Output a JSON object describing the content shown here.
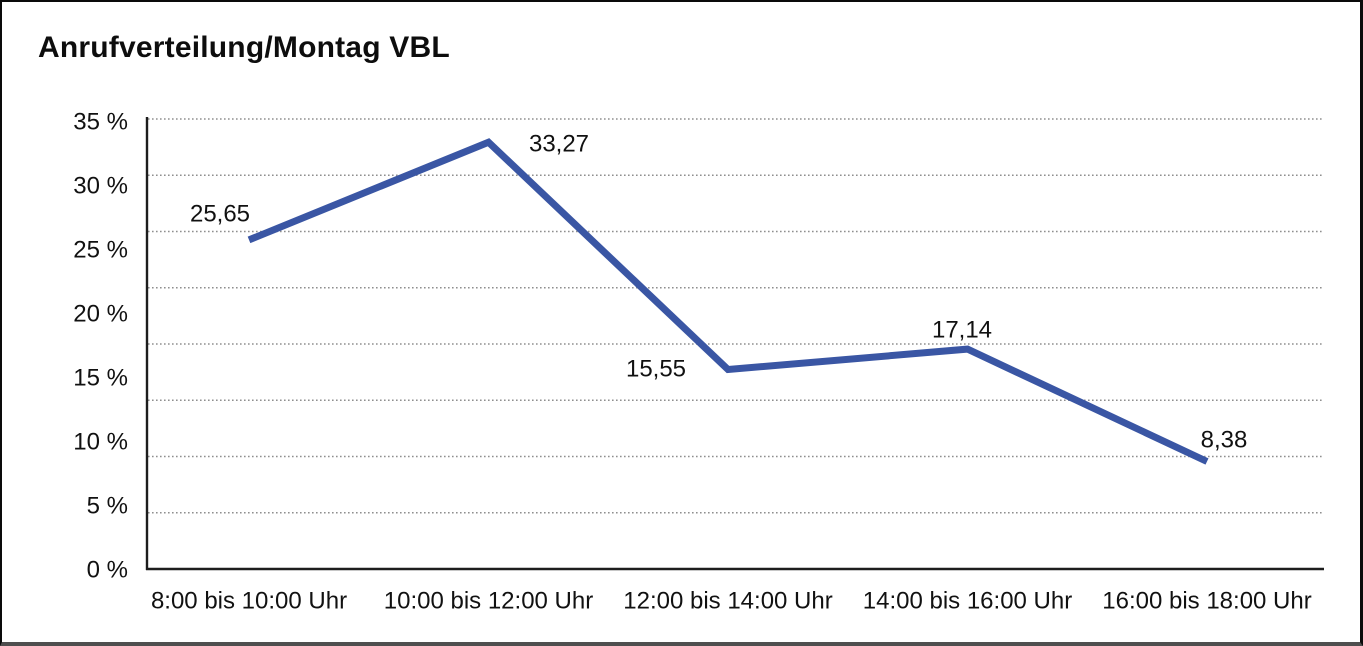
{
  "title": "Anrufverteilung/Montag VBL",
  "chart_data": {
    "type": "line",
    "title": "Anrufverteilung/Montag VBL",
    "categories": [
      "8:00 bis 10:00 Uhr",
      "10:00 bis 12:00 Uhr",
      "12:00 bis 14:00 Uhr",
      "14:00 bis 16:00 Uhr",
      "16:00 bis 18:00 Uhr"
    ],
    "values": [
      25.65,
      33.27,
      15.55,
      17.14,
      8.38
    ],
    "value_labels": [
      "25,65",
      "33,27",
      "15,55",
      "17,14",
      "8,38"
    ],
    "y_ticks": [
      "35 %",
      "30 %",
      "25 %",
      "20 %",
      "15 %",
      "10 %",
      "5 %",
      "0 %"
    ],
    "ylim": [
      0,
      35
    ],
    "xlabel": "",
    "ylabel": "",
    "legend": "none",
    "grid": "horizontal-dotted",
    "line_color": "#3a56a4",
    "grid_color": "#8f8f8f",
    "axis_color": "#1d1d1d",
    "text_color": "#111111"
  }
}
